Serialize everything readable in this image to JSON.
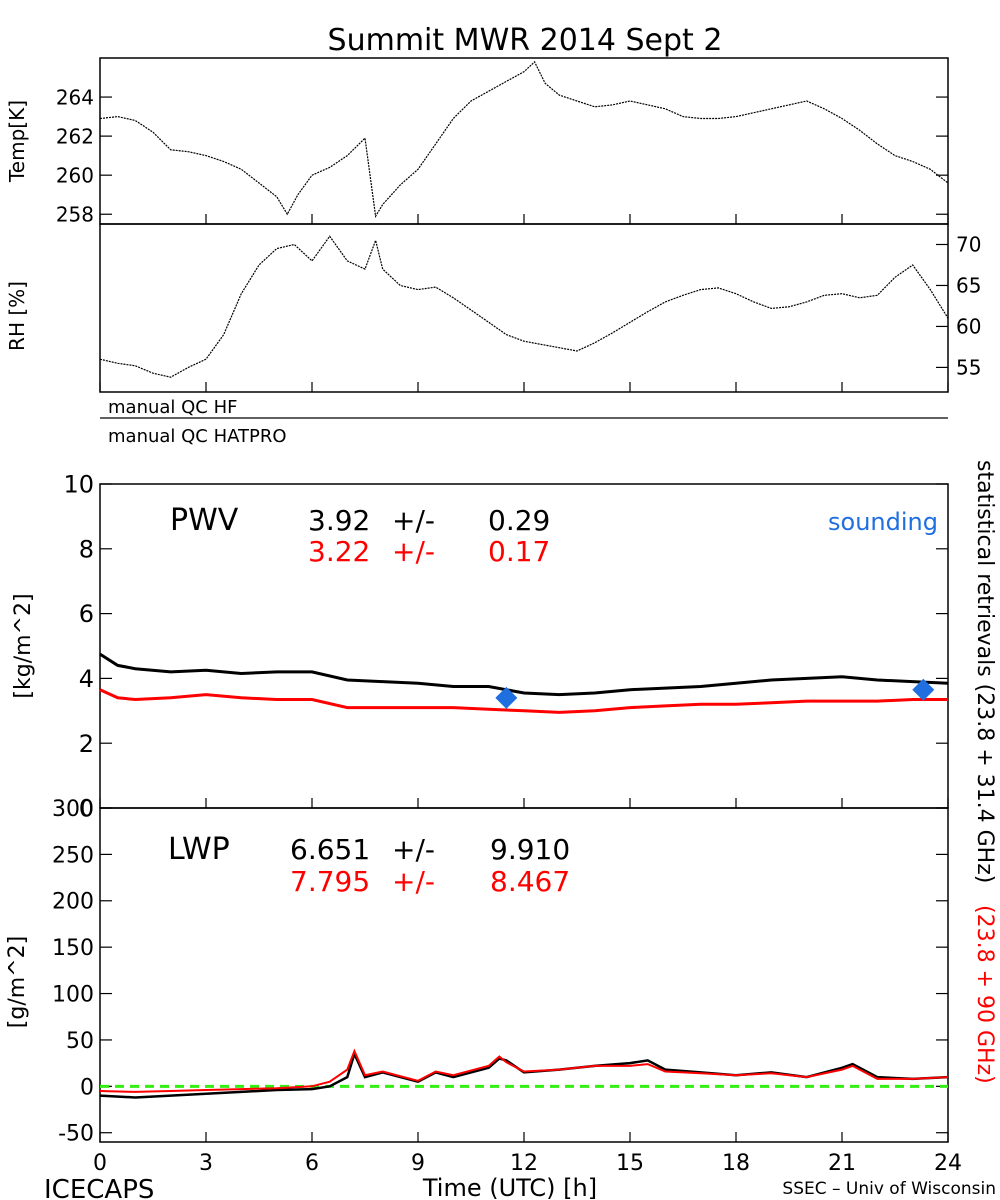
{
  "title": "Summit MWR 2014 Sept  2",
  "bottom_left_label": "ICECAPS",
  "bottom_right_label": "SSEC – Univ of Wisconsin",
  "xlabel": "Time (UTC) [h]",
  "qc_labels": [
    "manual QC HF",
    "manual QC HATPRO"
  ],
  "right_labels": {
    "black": "statistical retrievals (23.8 + 31.4 GHz)",
    "red": "(23.8 + 90 GHz)"
  },
  "colors": {
    "black_series": "#000000",
    "red_series": "#ff0000",
    "sounding": "#1f6fe0",
    "zero_line": "#33ee11"
  },
  "chart_data": [
    {
      "type": "line",
      "panel": "temperature",
      "ylabel": "Temp[K]",
      "xlim": [
        0,
        24
      ],
      "ylim": [
        257.5,
        266
      ],
      "yticks": [
        258,
        260,
        262,
        264
      ],
      "xticks": [
        0,
        3,
        6,
        9,
        12,
        15,
        18,
        21,
        24
      ],
      "series": [
        {
          "color": "#000000",
          "x": [
            0,
            0.5,
            1,
            1.5,
            2,
            2.5,
            3,
            3.5,
            4,
            4.5,
            5,
            5.3,
            5.6,
            6,
            6.5,
            7,
            7.5,
            7.8,
            8,
            8.5,
            9,
            9.5,
            10,
            10.5,
            11,
            11.5,
            12,
            12.3,
            12.6,
            13,
            13.5,
            14,
            14.5,
            15,
            15.5,
            16,
            16.5,
            17,
            17.5,
            18,
            18.5,
            19,
            19.5,
            20,
            20.5,
            21,
            21.5,
            22,
            22.5,
            23,
            23.5,
            24
          ],
          "y": [
            262.9,
            263.0,
            262.8,
            262.2,
            261.3,
            261.2,
            261.0,
            260.7,
            260.3,
            259.6,
            258.9,
            258.0,
            259.0,
            260.0,
            260.4,
            261.0,
            261.9,
            257.9,
            258.5,
            259.5,
            260.3,
            261.6,
            262.9,
            263.8,
            264.3,
            264.8,
            265.3,
            265.8,
            264.7,
            264.1,
            263.8,
            263.5,
            263.6,
            263.8,
            263.6,
            263.4,
            263.0,
            262.9,
            262.9,
            263.0,
            263.2,
            263.4,
            263.6,
            263.8,
            263.4,
            262.9,
            262.3,
            261.6,
            261.0,
            260.7,
            260.3,
            259.6
          ]
        }
      ]
    },
    {
      "type": "line",
      "panel": "relative_humidity",
      "ylabel": "RH [%]",
      "xlim": [
        0,
        24
      ],
      "ylim": [
        52,
        72.5
      ],
      "yticks": [
        55,
        60,
        65,
        70
      ],
      "series": [
        {
          "color": "#000000",
          "x": [
            0,
            0.5,
            1,
            1.5,
            2,
            2.5,
            3,
            3.5,
            4,
            4.5,
            5,
            5.5,
            6,
            6.5,
            7,
            7.5,
            7.8,
            8,
            8.5,
            9,
            9.5,
            10,
            10.5,
            11,
            11.5,
            12,
            12.5,
            13,
            13.5,
            14,
            14.5,
            15,
            15.5,
            16,
            16.5,
            17,
            17.5,
            18,
            18.5,
            19,
            19.5,
            20,
            20.5,
            21,
            21.5,
            22,
            22.5,
            23,
            23.5,
            24
          ],
          "y": [
            56.0,
            55.5,
            55.2,
            54.3,
            53.8,
            55.0,
            56.0,
            59.0,
            64.0,
            67.5,
            69.5,
            70.0,
            68.0,
            71.0,
            68.0,
            67.0,
            70.5,
            67.0,
            65.0,
            64.5,
            64.8,
            63.5,
            62.0,
            60.5,
            59.0,
            58.2,
            57.8,
            57.4,
            57.0,
            58.0,
            59.2,
            60.5,
            61.8,
            63.0,
            63.8,
            64.5,
            64.7,
            64.0,
            63.0,
            62.2,
            62.4,
            63.0,
            63.8,
            64.0,
            63.5,
            63.8,
            66.0,
            67.5,
            64.5,
            61.0
          ]
        }
      ]
    },
    {
      "type": "line",
      "panel": "pwv",
      "panel_label": "PWV",
      "ylabel": "[kg/m^2]",
      "xlim": [
        0,
        24
      ],
      "ylim": [
        0,
        10
      ],
      "yticks": [
        0,
        2,
        4,
        6,
        8,
        10
      ],
      "stats": [
        {
          "mean": "3.92",
          "pm": "+/-",
          "std": "0.29",
          "color": "#000000"
        },
        {
          "mean": "3.22",
          "pm": "+/-",
          "std": "0.17",
          "color": "#ff0000"
        }
      ],
      "sounding_label": "sounding",
      "sounding_points": [
        {
          "x": 11.5,
          "y": 3.4
        },
        {
          "x": 23.3,
          "y": 3.65
        }
      ],
      "series": [
        {
          "color": "#000000",
          "x": [
            0,
            0.5,
            1,
            2,
            3,
            4,
            5,
            6,
            7,
            8,
            9,
            10,
            11,
            12,
            13,
            14,
            15,
            16,
            17,
            18,
            19,
            20,
            21,
            22,
            23,
            24
          ],
          "y": [
            4.75,
            4.4,
            4.3,
            4.2,
            4.25,
            4.15,
            4.2,
            4.2,
            3.95,
            3.9,
            3.85,
            3.75,
            3.75,
            3.55,
            3.5,
            3.55,
            3.65,
            3.7,
            3.75,
            3.85,
            3.95,
            4.0,
            4.05,
            3.95,
            3.9,
            3.85
          ]
        },
        {
          "color": "#ff0000",
          "x": [
            0,
            0.5,
            1,
            2,
            3,
            4,
            5,
            6,
            7,
            8,
            9,
            10,
            11,
            12,
            13,
            14,
            15,
            16,
            17,
            18,
            19,
            20,
            21,
            22,
            23,
            24
          ],
          "y": [
            3.65,
            3.4,
            3.35,
            3.4,
            3.5,
            3.4,
            3.35,
            3.35,
            3.1,
            3.1,
            3.1,
            3.1,
            3.05,
            3.0,
            2.95,
            3.0,
            3.1,
            3.15,
            3.2,
            3.2,
            3.25,
            3.3,
            3.3,
            3.3,
            3.35,
            3.35
          ]
        }
      ]
    },
    {
      "type": "line",
      "panel": "lwp",
      "panel_label": "LWP",
      "ylabel": "[g/m^2]",
      "xlim": [
        0,
        24
      ],
      "ylim": [
        -60,
        300
      ],
      "yticks": [
        -50,
        0,
        50,
        100,
        150,
        200,
        250,
        300
      ],
      "stats": [
        {
          "mean": "6.651",
          "pm": "+/-",
          "std": "9.910",
          "color": "#000000"
        },
        {
          "mean": "7.795",
          "pm": "+/-",
          "std": "8.467",
          "color": "#ff0000"
        }
      ],
      "reference_line": {
        "y": 0,
        "style": "dashed",
        "color": "#33ee11"
      },
      "series": [
        {
          "color": "#000000",
          "x": [
            0,
            1,
            2,
            3,
            4,
            5,
            6,
            6.5,
            7,
            7.2,
            7.5,
            8,
            9,
            9.5,
            10,
            11,
            11.3,
            11.5,
            12,
            13,
            14,
            15,
            15.5,
            16,
            17,
            18,
            19,
            20,
            21,
            21.3,
            22,
            23,
            24
          ],
          "y": [
            -10,
            -12,
            -10,
            -8,
            -6,
            -4,
            -3,
            0,
            10,
            35,
            10,
            15,
            5,
            15,
            10,
            20,
            30,
            28,
            15,
            18,
            22,
            25,
            28,
            18,
            15,
            12,
            15,
            10,
            20,
            24,
            10,
            8,
            10
          ]
        },
        {
          "color": "#ff0000",
          "x": [
            0,
            1,
            2,
            3,
            4,
            5,
            6,
            6.5,
            7,
            7.2,
            7.5,
            8,
            9,
            9.5,
            10,
            11,
            11.3,
            11.5,
            12,
            13,
            14,
            15,
            15.5,
            16,
            17,
            18,
            19,
            20,
            21,
            21.3,
            22,
            23,
            24
          ],
          "y": [
            -5,
            -6,
            -5,
            -4,
            -3,
            -2,
            0,
            5,
            18,
            38,
            12,
            16,
            6,
            16,
            12,
            22,
            32,
            26,
            16,
            18,
            22,
            22,
            24,
            16,
            14,
            12,
            14,
            10,
            18,
            22,
            8,
            8,
            10
          ]
        }
      ]
    }
  ]
}
